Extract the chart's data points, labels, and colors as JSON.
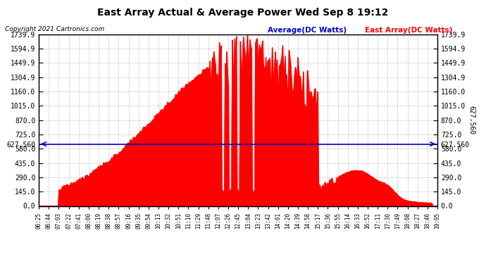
{
  "title": "East Array Actual & Average Power Wed Sep 8 19:12",
  "copyright": "Copyright 2021 Cartronics.com",
  "legend_average": "Average(DC Watts)",
  "legend_east": "East Array(DC Watts)",
  "average_value": 627.56,
  "y_ticks": [
    0.0,
    145.0,
    290.0,
    435.0,
    580.0,
    627.56,
    725.0,
    870.0,
    1015.0,
    1160.0,
    1304.9,
    1449.9,
    1594.9,
    1739.9
  ],
  "y_tick_labels": [
    "0.0",
    "145.0",
    "290.0",
    "435.0",
    "580.0",
    "627.560",
    "725.0",
    "870.0",
    "1015.0",
    "1160.0",
    "1304.9",
    "1449.9",
    "1594.9",
    "1739.9"
  ],
  "x_tick_labels": [
    "06:25",
    "06:44",
    "07:03",
    "07:22",
    "07:41",
    "08:00",
    "08:19",
    "08:38",
    "08:57",
    "09:16",
    "09:35",
    "09:54",
    "10:13",
    "10:32",
    "10:51",
    "11:10",
    "11:29",
    "11:48",
    "12:07",
    "12:26",
    "12:45",
    "13:04",
    "13:23",
    "13:42",
    "14:01",
    "14:20",
    "14:39",
    "14:58",
    "15:17",
    "15:36",
    "15:55",
    "16:14",
    "16:33",
    "16:52",
    "17:11",
    "17:30",
    "17:49",
    "18:08",
    "18:27",
    "18:46",
    "19:05"
  ],
  "background_color": "#ffffff",
  "plot_bg_color": "#ffffff",
  "fill_color": "#ff0000",
  "line_color": "#ff0000",
  "avg_line_color": "#0000cc",
  "grid_color": "#aaaaaa",
  "title_color": "#000000",
  "ymax": 1739.9,
  "ymin": 0.0
}
